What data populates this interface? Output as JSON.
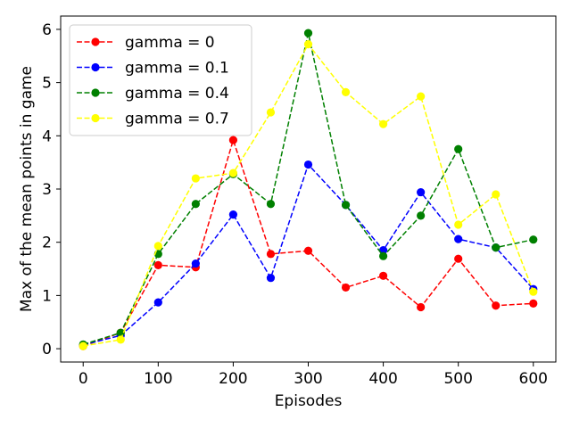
{
  "chart_data": {
    "type": "line",
    "title": "",
    "xlabel": "Episodes",
    "ylabel": "Max of the mean points in game",
    "xlim": [
      -30,
      630
    ],
    "ylim": [
      -0.25,
      6.25
    ],
    "x_ticks": [
      0,
      100,
      200,
      300,
      400,
      500,
      600
    ],
    "y_ticks": [
      0,
      1,
      2,
      3,
      4,
      5,
      6
    ],
    "grid": false,
    "legend_position": "upper left",
    "line_style": "dashed",
    "marker": "circle",
    "x": [
      0,
      50,
      100,
      150,
      200,
      250,
      300,
      350,
      400,
      450,
      500,
      550,
      600
    ],
    "series": [
      {
        "name": "gamma = 0",
        "color": "#ff0000",
        "values": [
          0.05,
          0.3,
          1.57,
          1.53,
          3.92,
          1.78,
          1.84,
          1.15,
          1.37,
          0.78,
          1.69,
          0.81,
          0.85
        ]
      },
      {
        "name": "gamma = 0.1",
        "color": "#0000ff",
        "values": [
          0.07,
          0.25,
          0.87,
          1.6,
          2.52,
          1.33,
          3.46,
          2.7,
          1.85,
          2.94,
          2.06,
          1.9,
          1.12
        ]
      },
      {
        "name": "gamma = 0.4",
        "color": "#008000",
        "values": [
          0.08,
          0.3,
          1.78,
          2.72,
          3.28,
          2.72,
          5.93,
          2.7,
          1.74,
          2.5,
          3.75,
          1.9,
          2.05
        ]
      },
      {
        "name": "gamma = 0.7",
        "color": "#ffff00",
        "values": [
          0.05,
          0.17,
          1.93,
          3.2,
          3.3,
          4.44,
          5.72,
          4.82,
          4.22,
          4.74,
          2.33,
          2.9,
          1.07
        ]
      }
    ]
  }
}
